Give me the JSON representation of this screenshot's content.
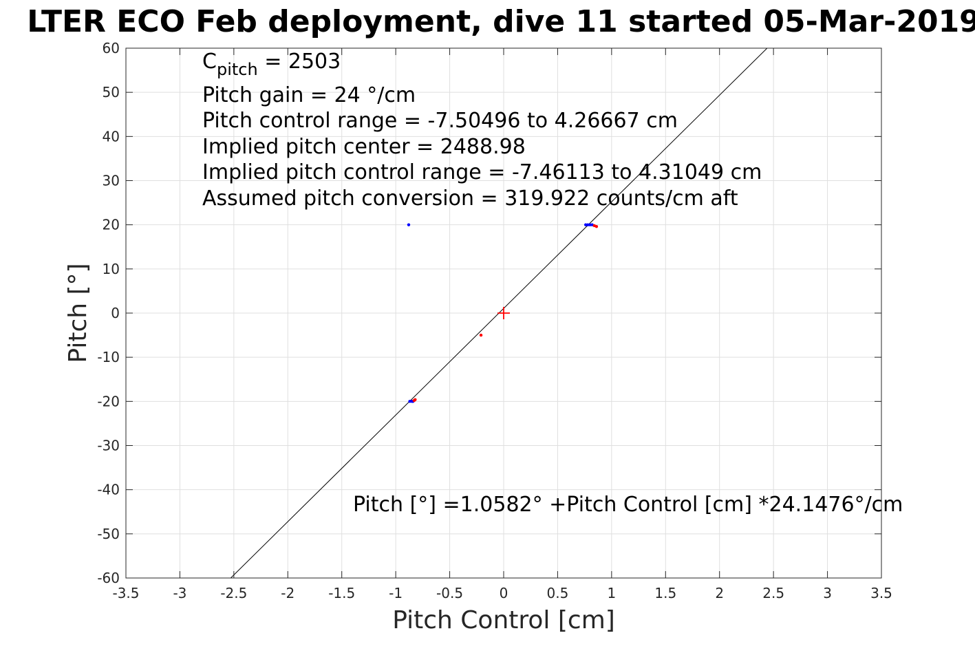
{
  "chart_data": {
    "type": "scatter",
    "title": "LTER ECO Feb deployment, dive 11 started 05-Mar-2019",
    "xlabel": "Pitch Control [cm]",
    "ylabel": "Pitch [°]",
    "xlim": [
      -3.5,
      3.5
    ],
    "ylim": [
      -60,
      60
    ],
    "x_ticks": [
      -3.5,
      -3,
      -2.5,
      -2,
      -1.5,
      -1,
      -0.5,
      0,
      0.5,
      1,
      1.5,
      2,
      2.5,
      3,
      3.5
    ],
    "y_ticks": [
      -60,
      -50,
      -40,
      -30,
      -20,
      -10,
      0,
      10,
      20,
      30,
      40,
      50,
      60
    ],
    "grid": true,
    "annotations": {
      "cpitch_base": "C",
      "cpitch_sub": "pitch",
      "cpitch_rest": " = 2503",
      "line2": "Pitch gain = 24 °/cm",
      "line3": "Pitch control range = -7.50496 to 4.26667 cm",
      "line4": "Implied pitch center = 2488.98",
      "line5": "Implied pitch control range = -7.46113 to 4.31049 cm",
      "line6": "Assumed pitch conversion = 319.922 counts/cm aft",
      "fit_equation": "Pitch [°] =1.0582° +Pitch Control [cm] *24.1476°/cm"
    },
    "fit_line": {
      "intercept": 1.0582,
      "slope": 24.1476,
      "color": "#000000"
    },
    "center_marker": {
      "x": 0,
      "y": 0,
      "color": "#ff0000"
    },
    "series": [
      {
        "color": "#0000ff",
        "points": [
          {
            "x": -0.88,
            "y": 20
          },
          {
            "x": 0.76,
            "y": 20
          },
          {
            "x": 0.78,
            "y": 20
          },
          {
            "x": 0.8,
            "y": 20
          },
          {
            "x": 0.82,
            "y": 20
          },
          {
            "x": -0.87,
            "y": -20
          },
          {
            "x": -0.85,
            "y": -20
          },
          {
            "x": -0.84,
            "y": -20
          }
        ]
      },
      {
        "color": "#ff0000",
        "points": [
          {
            "x": 0.84,
            "y": 19.8
          },
          {
            "x": 0.86,
            "y": 19.6
          },
          {
            "x": -0.83,
            "y": -19.8
          },
          {
            "x": -0.82,
            "y": -19.6
          },
          {
            "x": -0.21,
            "y": -5
          }
        ]
      }
    ]
  }
}
